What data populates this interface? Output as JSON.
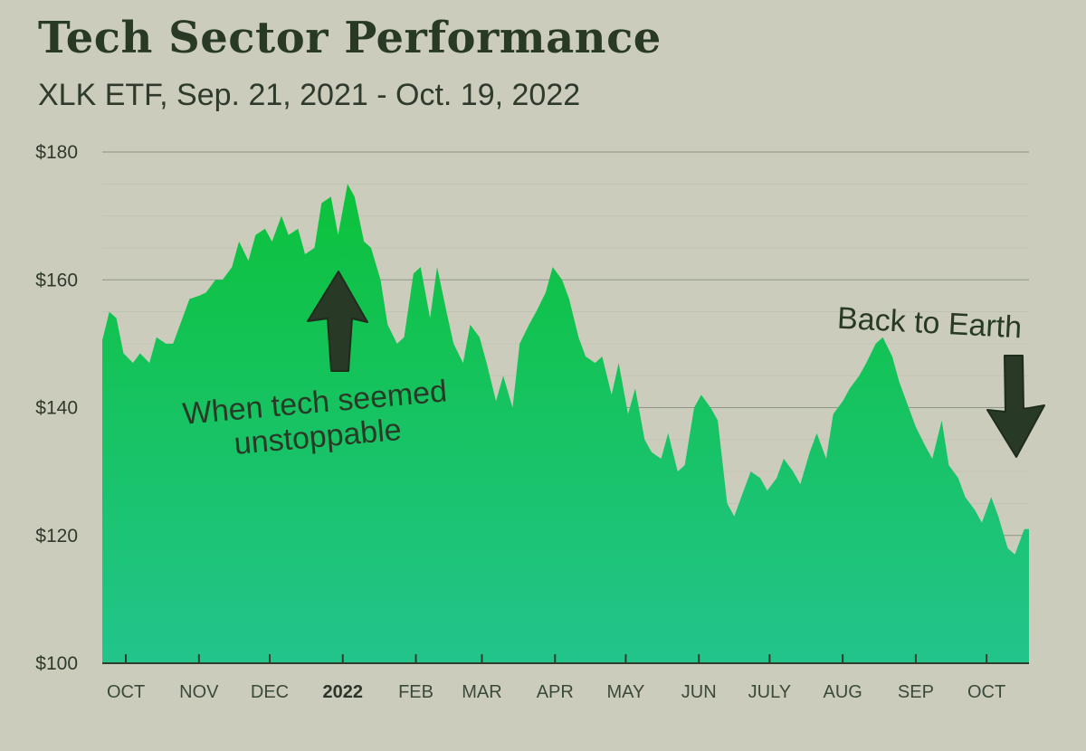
{
  "chart_data": {
    "type": "area",
    "title": "Tech Sector Performance",
    "subtitle": "XLK ETF, Sep. 21, 2021 - Oct. 19, 2022",
    "xlabel": "",
    "ylabel": "",
    "ylim": [
      100,
      180
    ],
    "y_ticks": [
      {
        "value": 180,
        "label": "$180"
      },
      {
        "value": 160,
        "label": "$160"
      },
      {
        "value": 140,
        "label": "$140"
      },
      {
        "value": 120,
        "label": "$120"
      },
      {
        "value": 100,
        "label": "$100"
      }
    ],
    "x_range": [
      "2021-09-21",
      "2022-10-19"
    ],
    "x_ticks": [
      {
        "date": "2021-10-01",
        "label": "OCT",
        "bold": false
      },
      {
        "date": "2021-11-01",
        "label": "NOV",
        "bold": false
      },
      {
        "date": "2021-12-01",
        "label": "DEC",
        "bold": false
      },
      {
        "date": "2022-01-01",
        "label": "2022",
        "bold": true
      },
      {
        "date": "2022-02-01",
        "label": "FEB",
        "bold": false
      },
      {
        "date": "2022-03-01",
        "label": "MAR",
        "bold": false
      },
      {
        "date": "2022-04-01",
        "label": "APR",
        "bold": false
      },
      {
        "date": "2022-05-01",
        "label": "MAY",
        "bold": false
      },
      {
        "date": "2022-06-01",
        "label": "JUN",
        "bold": false
      },
      {
        "date": "2022-07-01",
        "label": "JULY",
        "bold": false
      },
      {
        "date": "2022-08-01",
        "label": "AUG",
        "bold": false
      },
      {
        "date": "2022-09-01",
        "label": "SEP",
        "bold": false
      },
      {
        "date": "2022-10-01",
        "label": "OCT",
        "bold": false
      }
    ],
    "grid": true,
    "fill_colors": {
      "top": "#0cc23a",
      "bottom": "#22c48c"
    },
    "series": [
      {
        "points": [
          [
            "2021-09-21",
            150.5
          ],
          [
            "2021-09-24",
            155
          ],
          [
            "2021-09-27",
            154
          ],
          [
            "2021-09-30",
            148.5
          ],
          [
            "2021-10-04",
            147
          ],
          [
            "2021-10-07",
            148.5
          ],
          [
            "2021-10-11",
            147
          ],
          [
            "2021-10-14",
            151
          ],
          [
            "2021-10-18",
            150
          ],
          [
            "2021-10-21",
            150
          ],
          [
            "2021-10-25",
            154
          ],
          [
            "2021-10-28",
            157
          ],
          [
            "2021-11-01",
            157.5
          ],
          [
            "2021-11-04",
            158
          ],
          [
            "2021-11-08",
            160
          ],
          [
            "2021-11-11",
            160
          ],
          [
            "2021-11-15",
            162
          ],
          [
            "2021-11-18",
            166
          ],
          [
            "2021-11-22",
            163
          ],
          [
            "2021-11-25",
            167
          ],
          [
            "2021-11-29",
            168
          ],
          [
            "2021-12-02",
            166
          ],
          [
            "2021-12-06",
            170
          ],
          [
            "2021-12-09",
            167
          ],
          [
            "2021-12-13",
            168
          ],
          [
            "2021-12-16",
            164
          ],
          [
            "2021-12-20",
            165
          ],
          [
            "2021-12-23",
            172
          ],
          [
            "2021-12-27",
            173
          ],
          [
            "2021-12-30",
            167
          ],
          [
            "2022-01-03",
            175
          ],
          [
            "2022-01-06",
            173
          ],
          [
            "2022-01-10",
            166
          ],
          [
            "2022-01-13",
            165
          ],
          [
            "2022-01-17",
            160
          ],
          [
            "2022-01-20",
            153
          ],
          [
            "2022-01-24",
            150
          ],
          [
            "2022-01-27",
            151
          ],
          [
            "2022-01-31",
            161
          ],
          [
            "2022-02-03",
            162
          ],
          [
            "2022-02-07",
            154
          ],
          [
            "2022-02-10",
            162
          ],
          [
            "2022-02-14",
            155
          ],
          [
            "2022-02-17",
            150
          ],
          [
            "2022-02-21",
            147
          ],
          [
            "2022-02-24",
            153
          ],
          [
            "2022-02-28",
            151
          ],
          [
            "2022-03-03",
            147
          ],
          [
            "2022-03-07",
            141
          ],
          [
            "2022-03-10",
            145
          ],
          [
            "2022-03-14",
            140
          ],
          [
            "2022-03-17",
            150
          ],
          [
            "2022-03-21",
            153
          ],
          [
            "2022-03-24",
            155
          ],
          [
            "2022-03-28",
            158
          ],
          [
            "2022-03-31",
            162
          ],
          [
            "2022-04-04",
            160
          ],
          [
            "2022-04-07",
            157
          ],
          [
            "2022-04-11",
            151
          ],
          [
            "2022-04-14",
            148
          ],
          [
            "2022-04-18",
            147
          ],
          [
            "2022-04-21",
            148
          ],
          [
            "2022-04-25",
            142
          ],
          [
            "2022-04-28",
            147
          ],
          [
            "2022-05-02",
            139
          ],
          [
            "2022-05-05",
            143
          ],
          [
            "2022-05-09",
            135
          ],
          [
            "2022-05-12",
            133
          ],
          [
            "2022-05-16",
            132
          ],
          [
            "2022-05-19",
            136
          ],
          [
            "2022-05-23",
            130
          ],
          [
            "2022-05-26",
            131
          ],
          [
            "2022-05-30",
            140
          ],
          [
            "2022-06-02",
            142
          ],
          [
            "2022-06-06",
            140
          ],
          [
            "2022-06-09",
            138
          ],
          [
            "2022-06-13",
            125
          ],
          [
            "2022-06-16",
            123
          ],
          [
            "2022-06-20",
            127
          ],
          [
            "2022-06-23",
            130
          ],
          [
            "2022-06-27",
            129
          ],
          [
            "2022-06-30",
            127
          ],
          [
            "2022-07-04",
            129
          ],
          [
            "2022-07-07",
            132
          ],
          [
            "2022-07-11",
            130
          ],
          [
            "2022-07-14",
            128
          ],
          [
            "2022-07-18",
            133
          ],
          [
            "2022-07-21",
            136
          ],
          [
            "2022-07-25",
            132
          ],
          [
            "2022-07-28",
            139
          ],
          [
            "2022-08-01",
            141
          ],
          [
            "2022-08-04",
            143
          ],
          [
            "2022-08-08",
            145
          ],
          [
            "2022-08-11",
            147
          ],
          [
            "2022-08-15",
            150
          ],
          [
            "2022-08-18",
            151
          ],
          [
            "2022-08-22",
            148
          ],
          [
            "2022-08-25",
            144
          ],
          [
            "2022-08-29",
            140
          ],
          [
            "2022-09-01",
            137
          ],
          [
            "2022-09-05",
            134
          ],
          [
            "2022-09-08",
            132
          ],
          [
            "2022-09-12",
            138
          ],
          [
            "2022-09-15",
            131
          ],
          [
            "2022-09-19",
            129
          ],
          [
            "2022-09-22",
            126
          ],
          [
            "2022-09-26",
            124
          ],
          [
            "2022-09-29",
            122
          ],
          [
            "2022-10-03",
            126
          ],
          [
            "2022-10-06",
            123
          ],
          [
            "2022-10-10",
            118
          ],
          [
            "2022-10-13",
            117
          ],
          [
            "2022-10-17",
            121
          ],
          [
            "2022-10-19",
            121
          ]
        ]
      }
    ],
    "annotations": [
      {
        "lines": [
          "When tech seemed",
          "unstoppable"
        ],
        "arrow": "up"
      },
      {
        "lines": [
          "Back to Earth"
        ],
        "arrow": "down"
      }
    ]
  }
}
